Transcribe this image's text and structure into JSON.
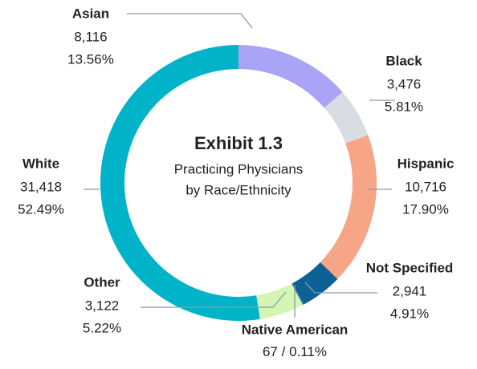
{
  "chart_data": {
    "type": "donut",
    "title": "Exhibit 1.3",
    "subtitle": [
      "Practicing Physicians",
      "by Race/Ethnicity"
    ],
    "categories": [
      "Asian",
      "Black",
      "Hispanic",
      "Not Specified",
      "Native American",
      "Other",
      "White"
    ],
    "values": [
      8116,
      3476,
      10716,
      2941,
      67,
      3122,
      31418
    ],
    "value_labels": [
      "8,116",
      "3,476",
      "10,716",
      "2,941",
      "67",
      "3,122",
      "31,418"
    ],
    "percentages": [
      13.56,
      5.81,
      17.9,
      4.91,
      0.11,
      5.22,
      52.49
    ],
    "percent_labels": [
      "13.56%",
      "5.81%",
      "17.90%",
      "4.91%",
      "0.11%",
      "5.22%",
      "52.49%"
    ],
    "inline_separator": " / ",
    "colors": [
      "#aaa4f6",
      "#d9dde3",
      "#f6a586",
      "#0d6194",
      "#3a8fb0",
      "#d5f6b3",
      "#00b3c8"
    ]
  }
}
